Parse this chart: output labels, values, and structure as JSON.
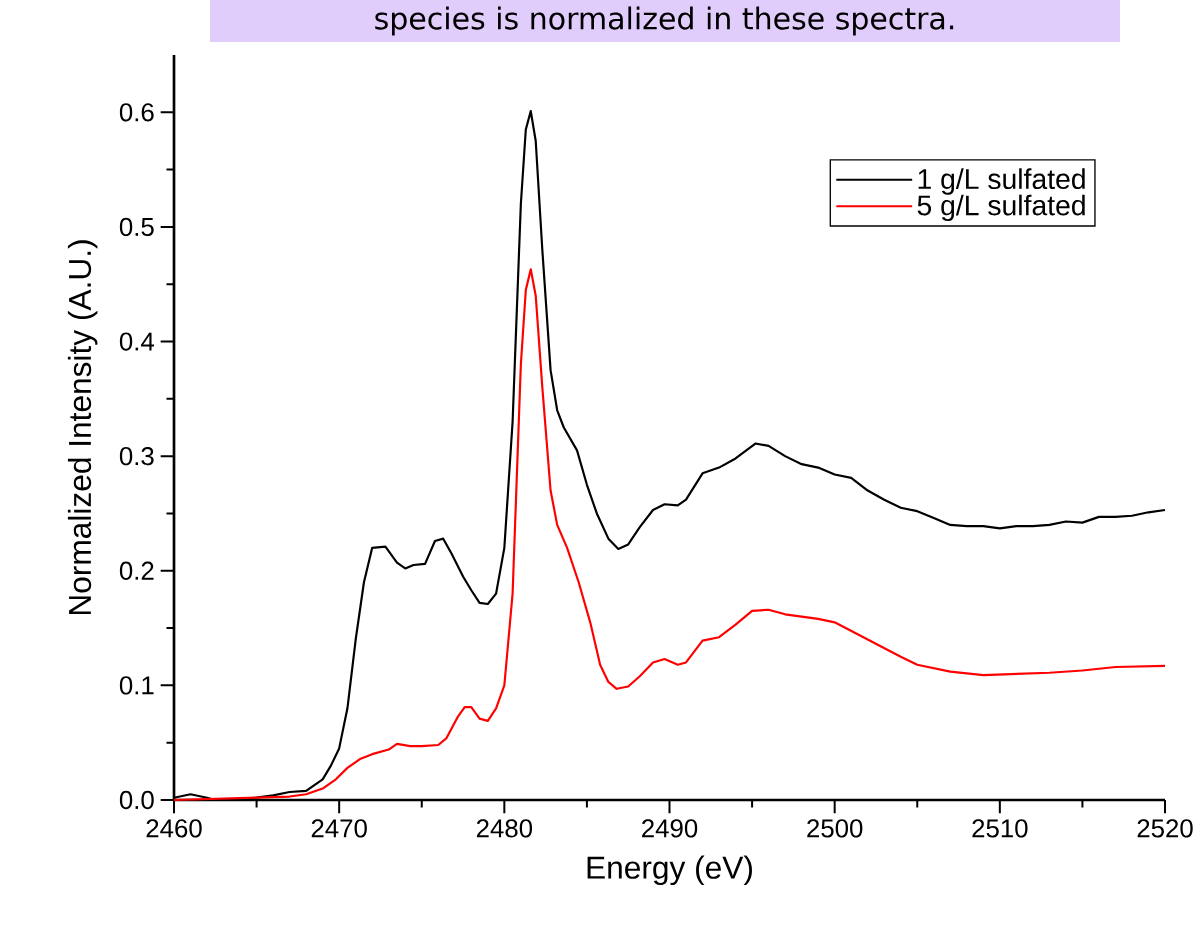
{
  "chart_data": {
    "type": "line",
    "title": "species is normalized in these spectra.",
    "xlabel": "Energy (eV)",
    "ylabel": "Normalized Intensity (A.U.)",
    "xlim": [
      2460,
      2520
    ],
    "ylim": [
      0,
      0.65
    ],
    "xticks": [
      2460,
      2470,
      2480,
      2490,
      2500,
      2510,
      2520
    ],
    "yticks": [
      {
        "value": 0,
        "label": "0.0"
      },
      0.1,
      0.2,
      0.3,
      0.4,
      0.5,
      0.6
    ],
    "grid": false,
    "legend": "top right",
    "series": [
      {
        "name": "1 g/L sulfated",
        "color": "#000000",
        "x": [
          2460,
          2461,
          2462,
          2462.5,
          2464,
          2465,
          2466,
          2467,
          2468,
          2469,
          2469.5,
          2470,
          2470.5,
          2471,
          2471.5,
          2472,
          2472.8,
          2473.5,
          2474,
          2474.5,
          2475.2,
          2475.8,
          2476.3,
          2476.8,
          2477.5,
          2478,
          2478.5,
          2479,
          2479.5,
          2480,
          2480.5,
          2481,
          2481.3,
          2481.6,
          2481.9,
          2482.3,
          2482.8,
          2483.2,
          2483.6,
          2484.4,
          2485,
          2485.6,
          2486.3,
          2486.9,
          2487.5,
          2488.2,
          2489,
          2489.7,
          2490.5,
          2491,
          2492,
          2493,
          2494,
          2495.2,
          2496,
          2497,
          2498,
          2499,
          2500,
          2501,
          2502,
          2503,
          2504,
          2505,
          2506,
          2507,
          2508,
          2509,
          2510,
          2511,
          2512,
          2513,
          2514,
          2515,
          2516,
          2517,
          2518,
          2519,
          2520
        ],
        "values": [
          0.002,
          0.005,
          0.002,
          0.0,
          0.001,
          0.002,
          0.004,
          0.007,
          0.008,
          0.018,
          0.03,
          0.045,
          0.08,
          0.14,
          0.19,
          0.22,
          0.221,
          0.207,
          0.202,
          0.205,
          0.206,
          0.226,
          0.228,
          0.215,
          0.195,
          0.183,
          0.172,
          0.171,
          0.18,
          0.22,
          0.33,
          0.52,
          0.585,
          0.601,
          0.575,
          0.48,
          0.375,
          0.34,
          0.325,
          0.305,
          0.275,
          0.25,
          0.228,
          0.219,
          0.223,
          0.238,
          0.253,
          0.258,
          0.257,
          0.262,
          0.285,
          0.29,
          0.298,
          0.311,
          0.309,
          0.3,
          0.293,
          0.29,
          0.284,
          0.281,
          0.27,
          0.262,
          0.255,
          0.252,
          0.246,
          0.24,
          0.239,
          0.239,
          0.237,
          0.239,
          0.239,
          0.24,
          0.243,
          0.242,
          0.247,
          0.247,
          0.248,
          0.251,
          0.253
        ]
      },
      {
        "name": "5 g/L sulfated",
        "color": "#ff0000",
        "x": [
          2460,
          2465,
          2467,
          2468,
          2469,
          2469.8,
          2470.5,
          2471.3,
          2472,
          2473,
          2473.5,
          2474.3,
          2475,
          2476,
          2476.5,
          2477.2,
          2477.6,
          2478,
          2478.5,
          2479,
          2479.5,
          2480,
          2480.5,
          2481,
          2481.3,
          2481.6,
          2481.9,
          2482.3,
          2482.8,
          2483.2,
          2483.8,
          2484.5,
          2485.2,
          2485.8,
          2486.3,
          2486.8,
          2487.5,
          2488.2,
          2489,
          2489.7,
          2490.5,
          2491,
          2492,
          2493,
          2494,
          2495,
          2496,
          2497,
          2498,
          2499,
          2500,
          2502,
          2504,
          2505,
          2507,
          2509,
          2511,
          2513,
          2515,
          2517,
          2520
        ],
        "values": [
          0.0,
          0.002,
          0.003,
          0.005,
          0.01,
          0.018,
          0.028,
          0.036,
          0.04,
          0.044,
          0.049,
          0.047,
          0.047,
          0.048,
          0.054,
          0.073,
          0.081,
          0.081,
          0.071,
          0.069,
          0.08,
          0.1,
          0.18,
          0.38,
          0.445,
          0.463,
          0.44,
          0.36,
          0.27,
          0.24,
          0.22,
          0.19,
          0.155,
          0.118,
          0.103,
          0.097,
          0.099,
          0.108,
          0.12,
          0.123,
          0.118,
          0.12,
          0.139,
          0.142,
          0.153,
          0.165,
          0.166,
          0.162,
          0.16,
          0.158,
          0.155,
          0.14,
          0.125,
          0.118,
          0.112,
          0.109,
          0.11,
          0.111,
          0.113,
          0.116,
          0.117
        ]
      }
    ]
  }
}
